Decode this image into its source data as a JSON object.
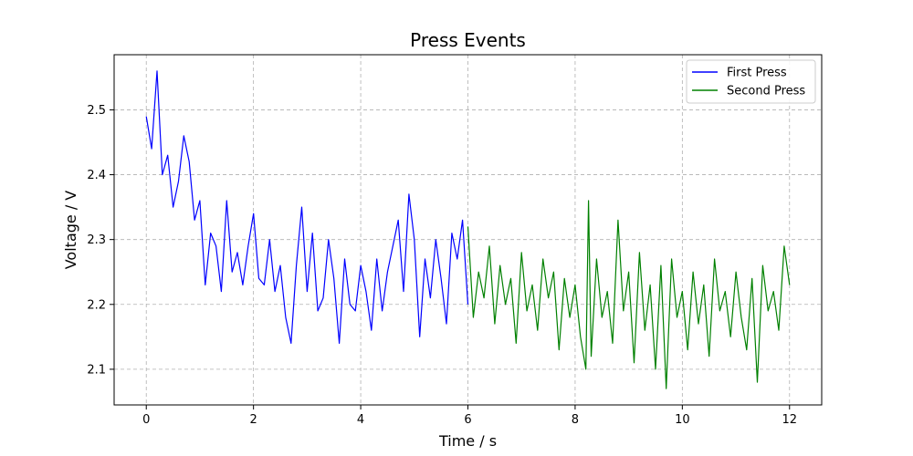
{
  "chart_data": {
    "type": "line",
    "title": "Press Events",
    "xlabel": "Time / s",
    "ylabel": "Voltage / V",
    "xlim": [
      -0.6,
      12.6
    ],
    "ylim": [
      2.045,
      2.585
    ],
    "xticks": [
      0,
      2,
      4,
      6,
      8,
      10,
      12
    ],
    "yticks": [
      2.1,
      2.2,
      2.3,
      2.4,
      2.5
    ],
    "grid": true,
    "legend_position": "top-right",
    "series": [
      {
        "name": "First Press",
        "color": "#0000ff",
        "x": [
          0.0,
          0.1,
          0.2,
          0.3,
          0.4,
          0.5,
          0.6,
          0.7,
          0.8,
          0.9,
          1.0,
          1.1,
          1.2,
          1.3,
          1.4,
          1.5,
          1.6,
          1.7,
          1.8,
          1.9,
          2.0,
          2.1,
          2.2,
          2.3,
          2.4,
          2.5,
          2.6,
          2.7,
          2.8,
          2.9,
          3.0,
          3.1,
          3.2,
          3.3,
          3.4,
          3.5,
          3.6,
          3.7,
          3.8,
          3.9,
          4.0,
          4.1,
          4.2,
          4.3,
          4.4,
          4.5,
          4.6,
          4.7,
          4.8,
          4.9,
          5.0,
          5.1,
          5.2,
          5.3,
          5.4,
          5.5,
          5.6,
          5.7,
          5.8,
          5.9,
          6.0
        ],
        "y": [
          2.49,
          2.44,
          2.56,
          2.4,
          2.43,
          2.35,
          2.39,
          2.46,
          2.42,
          2.33,
          2.36,
          2.23,
          2.31,
          2.29,
          2.22,
          2.36,
          2.25,
          2.28,
          2.23,
          2.29,
          2.34,
          2.24,
          2.23,
          2.3,
          2.22,
          2.26,
          2.18,
          2.14,
          2.26,
          2.35,
          2.22,
          2.31,
          2.19,
          2.21,
          2.3,
          2.24,
          2.14,
          2.27,
          2.2,
          2.19,
          2.26,
          2.22,
          2.16,
          2.27,
          2.19,
          2.25,
          2.29,
          2.33,
          2.22,
          2.37,
          2.3,
          2.15,
          2.27,
          2.21,
          2.3,
          2.24,
          2.17,
          2.31,
          2.27,
          2.33,
          2.2
        ]
      },
      {
        "name": "Second Press",
        "color": "#008000",
        "x": [
          6.0,
          6.1,
          6.2,
          6.3,
          6.4,
          6.5,
          6.6,
          6.7,
          6.8,
          6.9,
          7.0,
          7.1,
          7.2,
          7.3,
          7.4,
          7.5,
          7.6,
          7.7,
          7.8,
          7.9,
          8.0,
          8.1,
          8.2,
          8.25,
          8.3,
          8.4,
          8.5,
          8.6,
          8.7,
          8.8,
          8.9,
          9.0,
          9.1,
          9.2,
          9.3,
          9.4,
          9.5,
          9.6,
          9.7,
          9.8,
          9.9,
          10.0,
          10.1,
          10.2,
          10.3,
          10.4,
          10.5,
          10.6,
          10.7,
          10.8,
          10.9,
          11.0,
          11.1,
          11.2,
          11.3,
          11.4,
          11.5,
          11.6,
          11.7,
          11.8,
          11.9,
          12.0
        ],
        "y": [
          2.32,
          2.18,
          2.25,
          2.21,
          2.29,
          2.17,
          2.26,
          2.2,
          2.24,
          2.14,
          2.28,
          2.19,
          2.23,
          2.16,
          2.27,
          2.21,
          2.25,
          2.13,
          2.24,
          2.18,
          2.23,
          2.15,
          2.1,
          2.36,
          2.12,
          2.27,
          2.18,
          2.22,
          2.14,
          2.33,
          2.19,
          2.25,
          2.11,
          2.28,
          2.16,
          2.23,
          2.1,
          2.26,
          2.07,
          2.27,
          2.18,
          2.22,
          2.13,
          2.25,
          2.17,
          2.23,
          2.12,
          2.27,
          2.19,
          2.22,
          2.15,
          2.25,
          2.18,
          2.13,
          2.24,
          2.08,
          2.26,
          2.19,
          2.22,
          2.16,
          2.29,
          2.23
        ]
      }
    ]
  }
}
